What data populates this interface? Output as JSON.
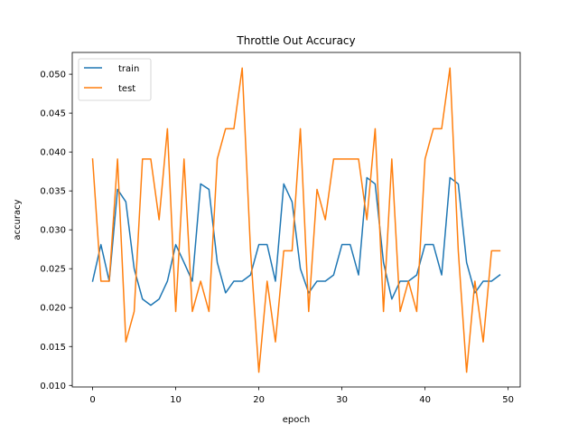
{
  "chart_data": {
    "type": "line",
    "title": "Throttle Out Accuracy",
    "xlabel": "epoch",
    "ylabel": "accuracy",
    "xlim": [
      -2.45,
      51.45
    ],
    "ylim": [
      0.0098,
      0.0528
    ],
    "xticks": [
      0,
      10,
      20,
      30,
      40,
      50
    ],
    "yticks": [
      0.01,
      0.015,
      0.02,
      0.025,
      0.03,
      0.035,
      0.04,
      0.045,
      0.05
    ],
    "ytick_labels": [
      "0.010",
      "0.015",
      "0.020",
      "0.025",
      "0.030",
      "0.035",
      "0.040",
      "0.045",
      "0.050"
    ],
    "legend_position": "top-left",
    "grid": false,
    "x": [
      0,
      1,
      2,
      3,
      4,
      5,
      6,
      7,
      8,
      9,
      10,
      11,
      12,
      13,
      14,
      15,
      16,
      17,
      18,
      19,
      20,
      21,
      22,
      23,
      24,
      25,
      26,
      27,
      28,
      29,
      30,
      31,
      32,
      33,
      34,
      35,
      36,
      37,
      38,
      39,
      40,
      41,
      42,
      43,
      44,
      45,
      46,
      47,
      48,
      49
    ],
    "series": [
      {
        "name": "train",
        "color": "#1f77b4",
        "values": [
          0.0234,
          0.0281,
          0.0234,
          0.0352,
          0.0336,
          0.025,
          0.0211,
          0.0203,
          0.0211,
          0.0234,
          0.0281,
          0.0258,
          0.0234,
          0.0359,
          0.0352,
          0.0258,
          0.0219,
          0.0234,
          0.0234,
          0.0242,
          0.0281,
          0.0281,
          0.0234,
          0.0359,
          0.0336,
          0.025,
          0.0219,
          0.0234,
          0.0234,
          0.0242,
          0.0281,
          0.0281,
          0.0242,
          0.0367,
          0.0359,
          0.0258,
          0.0211,
          0.0234,
          0.0234,
          0.0242,
          0.0281,
          0.0281,
          0.0242,
          0.0367,
          0.0359,
          0.0258,
          0.0219,
          0.0234,
          0.0234,
          0.0242
        ]
      },
      {
        "name": "test",
        "color": "#ff7f0e",
        "values": [
          0.0391,
          0.0234,
          0.0234,
          0.0391,
          0.0156,
          0.0195,
          0.0391,
          0.0391,
          0.0313,
          0.043,
          0.0195,
          0.0391,
          0.0195,
          0.0234,
          0.0195,
          0.0391,
          0.043,
          0.043,
          0.0508,
          0.0273,
          0.0117,
          0.0234,
          0.0156,
          0.0273,
          0.0273,
          0.043,
          0.0195,
          0.0352,
          0.0313,
          0.0391,
          0.0391,
          0.0391,
          0.0391,
          0.0313,
          0.043,
          0.0195,
          0.0391,
          0.0195,
          0.0234,
          0.0195,
          0.0391,
          0.043,
          0.043,
          0.0508,
          0.0273,
          0.0117,
          0.0234,
          0.0156,
          0.0273,
          0.0273
        ]
      }
    ]
  }
}
